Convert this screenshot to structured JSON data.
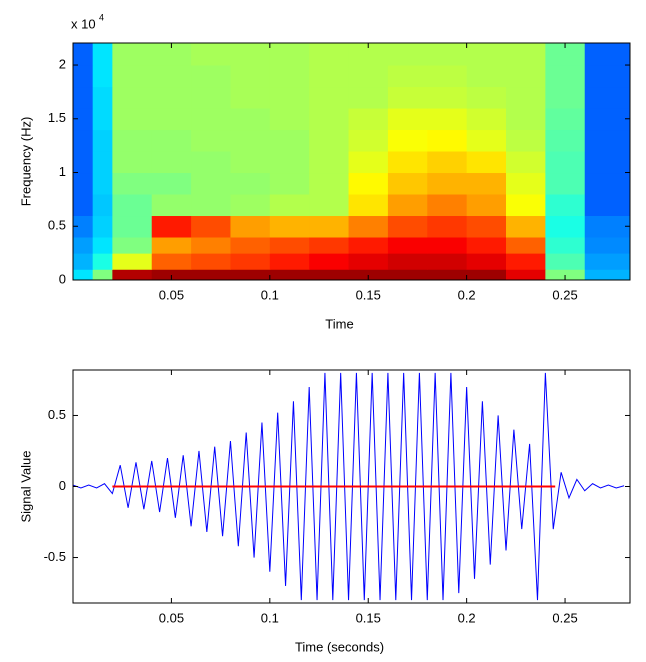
{
  "chart_data": [
    {
      "type": "heatmap",
      "xlabel": "Time",
      "ylabel": "Frequency (Hz)",
      "y_multiplier": {
        "base": "x 10",
        "exponent": "4"
      },
      "colormap": "jet",
      "zlim": [
        0,
        1
      ],
      "xlim": [
        0,
        0.283
      ],
      "ylim": [
        0,
        22050
      ],
      "xticks": [
        0.05,
        0.1,
        0.15,
        0.2,
        0.25
      ],
      "yticks": [
        0,
        {
          "value": 5000,
          "label": "0.5"
        },
        {
          "value": 10000,
          "label": "1"
        },
        {
          "value": 15000,
          "label": "1.5"
        },
        {
          "value": 20000,
          "label": "2"
        }
      ],
      "x_edges": [
        0,
        0.01,
        0.02,
        0.04,
        0.06,
        0.08,
        0.1,
        0.12,
        0.14,
        0.16,
        0.18,
        0.2,
        0.22,
        0.24,
        0.26,
        0.283
      ],
      "y_edges": [
        0,
        1000,
        2500,
        4000,
        6000,
        8000,
        10000,
        12000,
        14000,
        16000,
        18000,
        20000,
        22050
      ],
      "z": [
        [
          0.35,
          0.5,
          0.95,
          0.97,
          0.97,
          0.97,
          0.97,
          0.97,
          0.97,
          0.97,
          0.97,
          0.97,
          0.9,
          0.5,
          0.3
        ],
        [
          0.3,
          0.4,
          0.6,
          0.78,
          0.8,
          0.82,
          0.85,
          0.88,
          0.9,
          0.92,
          0.92,
          0.9,
          0.85,
          0.45,
          0.28
        ],
        [
          0.28,
          0.35,
          0.5,
          0.72,
          0.75,
          0.78,
          0.8,
          0.82,
          0.85,
          0.88,
          0.88,
          0.85,
          0.78,
          0.42,
          0.26
        ],
        [
          0.25,
          0.33,
          0.48,
          0.85,
          0.8,
          0.72,
          0.7,
          0.7,
          0.75,
          0.8,
          0.82,
          0.8,
          0.7,
          0.4,
          0.25
        ],
        [
          0.22,
          0.32,
          0.48,
          0.52,
          0.52,
          0.53,
          0.55,
          0.55,
          0.65,
          0.72,
          0.75,
          0.72,
          0.62,
          0.42,
          0.22
        ],
        [
          0.22,
          0.33,
          0.5,
          0.5,
          0.52,
          0.52,
          0.53,
          0.55,
          0.63,
          0.68,
          0.7,
          0.7,
          0.6,
          0.45,
          0.22
        ],
        [
          0.22,
          0.33,
          0.52,
          0.52,
          0.52,
          0.53,
          0.53,
          0.55,
          0.6,
          0.65,
          0.67,
          0.65,
          0.58,
          0.45,
          0.22
        ],
        [
          0.22,
          0.33,
          0.52,
          0.52,
          0.53,
          0.53,
          0.53,
          0.55,
          0.58,
          0.62,
          0.63,
          0.6,
          0.56,
          0.46,
          0.22
        ],
        [
          0.22,
          0.34,
          0.53,
          0.53,
          0.53,
          0.53,
          0.54,
          0.55,
          0.57,
          0.6,
          0.6,
          0.58,
          0.55,
          0.47,
          0.22
        ],
        [
          0.22,
          0.34,
          0.53,
          0.53,
          0.53,
          0.54,
          0.54,
          0.55,
          0.55,
          0.57,
          0.57,
          0.56,
          0.55,
          0.48,
          0.22
        ],
        [
          0.22,
          0.35,
          0.53,
          0.53,
          0.53,
          0.54,
          0.54,
          0.55,
          0.55,
          0.56,
          0.56,
          0.55,
          0.55,
          0.48,
          0.22
        ],
        [
          0.22,
          0.35,
          0.53,
          0.53,
          0.54,
          0.54,
          0.54,
          0.55,
          0.55,
          0.55,
          0.55,
          0.55,
          0.55,
          0.48,
          0.22
        ]
      ]
    },
    {
      "type": "line",
      "xlabel": "Time (seconds)",
      "ylabel": "Signal Value",
      "xlim": [
        0,
        0.283
      ],
      "ylim": [
        -0.82,
        0.82
      ],
      "xticks": [
        0.05,
        0.1,
        0.15,
        0.2,
        0.25
      ],
      "yticks": [
        -0.5,
        0,
        0.5
      ],
      "series": [
        {
          "color": "#0000ff",
          "x": [
            0,
            0.004,
            0.008,
            0.012,
            0.016,
            0.02,
            0.024,
            0.028,
            0.032,
            0.036,
            0.04,
            0.044,
            0.048,
            0.052,
            0.056,
            0.06,
            0.064,
            0.068,
            0.072,
            0.076,
            0.08,
            0.084,
            0.088,
            0.092,
            0.096,
            0.1,
            0.104,
            0.108,
            0.112,
            0.116,
            0.12,
            0.124,
            0.128,
            0.132,
            0.136,
            0.14,
            0.144,
            0.148,
            0.152,
            0.156,
            0.16,
            0.164,
            0.168,
            0.172,
            0.176,
            0.18,
            0.184,
            0.188,
            0.192,
            0.196,
            0.2,
            0.204,
            0.208,
            0.212,
            0.216,
            0.22,
            0.224,
            0.228,
            0.232,
            0.236,
            0.24,
            0.244,
            0.248,
            0.252,
            0.256,
            0.26,
            0.264,
            0.268,
            0.272,
            0.276,
            0.28
          ],
          "values": [
            0.01,
            -0.01,
            0.01,
            -0.01,
            0.02,
            -0.05,
            0.15,
            -0.15,
            0.17,
            -0.16,
            0.18,
            -0.18,
            0.2,
            -0.22,
            0.22,
            -0.28,
            0.25,
            -0.32,
            0.28,
            -0.35,
            0.32,
            -0.42,
            0.38,
            -0.5,
            0.45,
            -0.6,
            0.52,
            -0.7,
            0.6,
            -0.8,
            0.7,
            -0.8,
            0.8,
            -0.8,
            0.8,
            -0.8,
            0.8,
            -0.8,
            0.8,
            -0.8,
            0.8,
            -0.8,
            0.8,
            -0.8,
            0.8,
            -0.8,
            0.8,
            -0.8,
            0.8,
            -0.75,
            0.7,
            -0.65,
            0.6,
            -0.55,
            0.5,
            -0.45,
            0.4,
            -0.3,
            0.3,
            -0.8,
            0.8,
            -0.3,
            0.1,
            -0.08,
            0.05,
            -0.03,
            0.02,
            -0.01,
            0.01,
            -0.01,
            0.005
          ]
        },
        {
          "color": "#ff0000",
          "x": [
            0.02,
            0.245
          ],
          "values": [
            0,
            0
          ]
        }
      ]
    }
  ]
}
